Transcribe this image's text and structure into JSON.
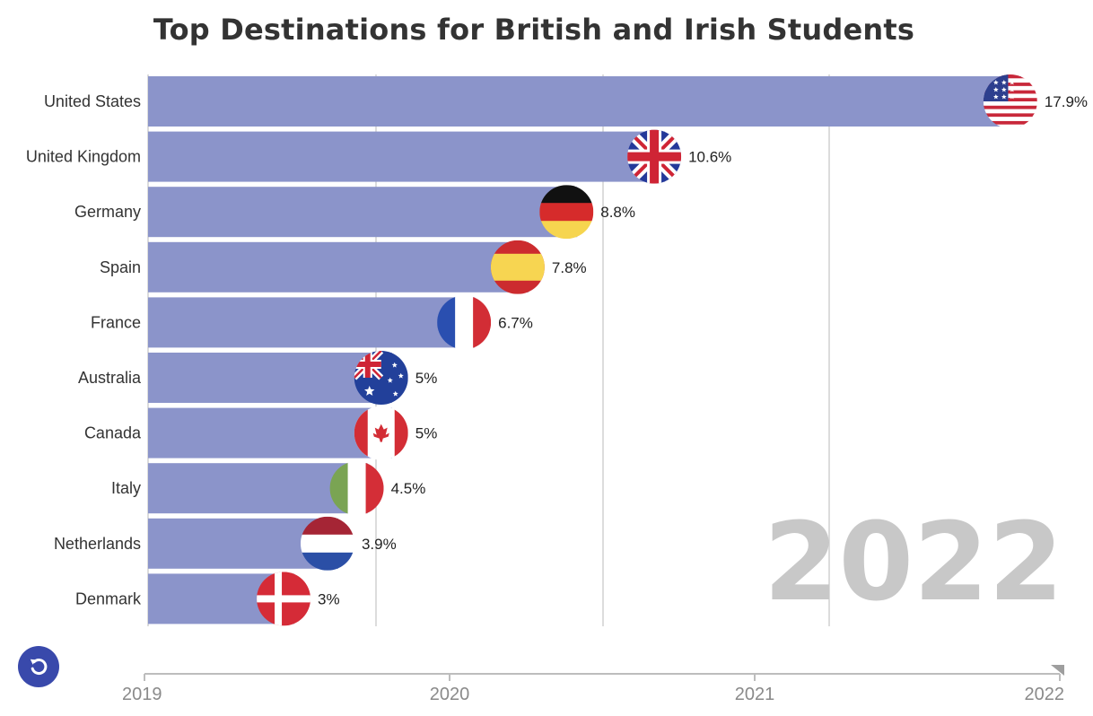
{
  "title": "Top Destinations for British and Irish Students",
  "current_year": "2022",
  "colors": {
    "bar": "#8b94ca",
    "grid": "#c4c4c4",
    "year": "#c8c8c8",
    "button": "#3949ab"
  },
  "replay_button_icon": "replay-icon",
  "timeline": {
    "labels": [
      "2019",
      "2020",
      "2021",
      "2022"
    ],
    "progress": 1.0
  },
  "chart_data": {
    "type": "bar",
    "orientation": "horizontal",
    "title": "Top Destinations for British and Irish Students",
    "categories": [
      "United States",
      "United Kingdom",
      "Germany",
      "Spain",
      "France",
      "Australia",
      "Canada",
      "Italy",
      "Netherlands",
      "Denmark"
    ],
    "values": [
      17.9,
      10.6,
      8.8,
      7.8,
      6.7,
      5,
      5,
      4.5,
      3.9,
      3
    ],
    "value_labels": [
      "17.9%",
      "10.6%",
      "8.8%",
      "7.8%",
      "6.7%",
      "5%",
      "5%",
      "4.5%",
      "3.9%",
      "3%"
    ],
    "flags": [
      "us-flag-icon",
      "uk-flag-icon",
      "germany-flag-icon",
      "spain-flag-icon",
      "france-flag-icon",
      "australia-flag-icon",
      "canada-flag-icon",
      "italy-flag-icon",
      "netherlands-flag-icon",
      "denmark-flag-icon"
    ],
    "xlim": [
      0,
      18.4
    ],
    "grid": true,
    "legend": "none"
  }
}
